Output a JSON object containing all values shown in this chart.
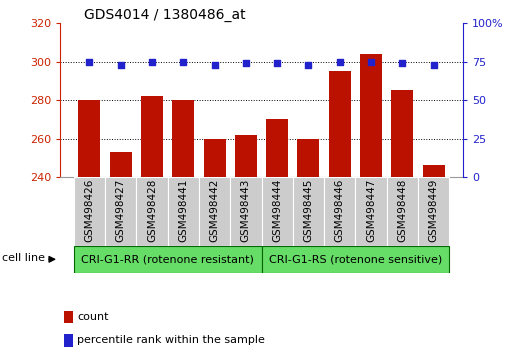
{
  "title": "GDS4014 / 1380486_at",
  "samples": [
    "GSM498426",
    "GSM498427",
    "GSM498428",
    "GSM498441",
    "GSM498442",
    "GSM498443",
    "GSM498444",
    "GSM498445",
    "GSM498446",
    "GSM498447",
    "GSM498448",
    "GSM498449"
  ],
  "counts": [
    280,
    253,
    282,
    280,
    260,
    262,
    270,
    260,
    295,
    304,
    285,
    246
  ],
  "percentile_ranks": [
    75,
    73,
    75,
    75,
    73,
    74,
    74,
    73,
    75,
    75,
    74,
    73
  ],
  "group1_label": "CRI-G1-RR (rotenone resistant)",
  "group2_label": "CRI-G1-RS (rotenone sensitive)",
  "group1_count": 6,
  "group2_count": 6,
  "ylim_left": [
    240,
    320
  ],
  "ylim_right": [
    0,
    100
  ],
  "yticks_left": [
    240,
    260,
    280,
    300,
    320
  ],
  "yticks_right": [
    0,
    25,
    50,
    75,
    100
  ],
  "bar_color": "#bb1100",
  "dot_color": "#2222cc",
  "group_bg_color": "#66dd66",
  "label_bg_color": "#cccccc",
  "xlabel_color": "#cc2200",
  "ylabel_right_color": "#2222cc",
  "grid_color": "#000000",
  "bar_width": 0.7,
  "cell_line_label": "cell line",
  "legend_count_label": "count",
  "legend_pct_label": "percentile rank within the sample"
}
